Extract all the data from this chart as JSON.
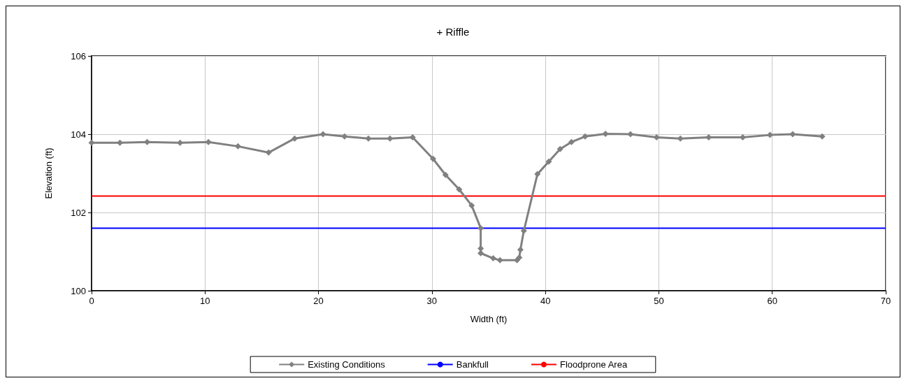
{
  "chart_data": {
    "type": "line",
    "title": "+ Riffle",
    "xlabel": "Width (ft)",
    "ylabel": "Elevation (ft)",
    "x": [
      0,
      2.5,
      4.9,
      7.8,
      10.3,
      12.9,
      15.6,
      17.9,
      20.4,
      22.3,
      24.4,
      26.3,
      28.3,
      30.1,
      31.2,
      32.4,
      33.5,
      34.3,
      34.3,
      34.3,
      35.4,
      36.0,
      37.5,
      37.7,
      37.8,
      38.1,
      39.3,
      40.3,
      41.3,
      42.3,
      43.5,
      45.3,
      47.5,
      49.8,
      51.9,
      54.4,
      57.4,
      59.8,
      61.8,
      64.4
    ],
    "series": [
      {
        "name": "Existing Conditions",
        "color": "#808080",
        "values": [
          103.78,
          103.78,
          103.8,
          103.78,
          103.8,
          103.69,
          103.53,
          103.89,
          104.0,
          103.94,
          103.89,
          103.89,
          103.92,
          103.37,
          102.96,
          102.59,
          102.18,
          101.6,
          101.08,
          100.96,
          100.83,
          100.78,
          100.78,
          100.85,
          101.05,
          101.53,
          102.98,
          103.3,
          103.62,
          103.8,
          103.94,
          104.01,
          104.0,
          103.92,
          103.89,
          103.92,
          103.92,
          103.98,
          104.0,
          103.94
        ]
      }
    ],
    "ref_lines": [
      {
        "axis": "y",
        "value": 101.6,
        "label": "Bankfull",
        "color": "#0000ff"
      },
      {
        "axis": "y",
        "value": 102.42,
        "label": "Floodprone Area",
        "color": "#ff0000"
      }
    ],
    "xlim": [
      0,
      70
    ],
    "xticks": [
      0,
      10,
      20,
      30,
      40,
      50,
      60,
      70
    ],
    "ylim": [
      100,
      106
    ],
    "yticks": [
      100,
      102,
      104,
      106
    ],
    "grid": true,
    "legend": "bottom",
    "marker": "diamond",
    "line_style": "solid"
  }
}
